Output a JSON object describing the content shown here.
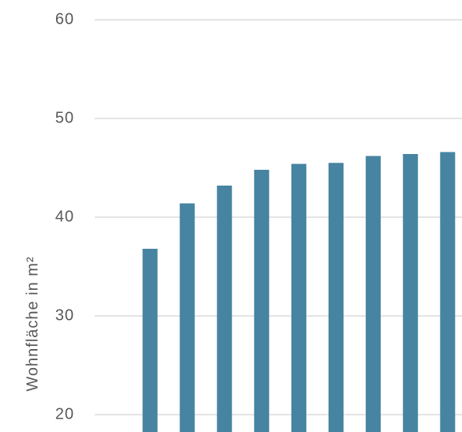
{
  "chart_data": {
    "type": "bar",
    "y_label": "Wohnfläche in m²",
    "categories": [
      null,
      null,
      null,
      null,
      null,
      null,
      null,
      null,
      null
    ],
    "values": [
      36.8,
      41.4,
      43.2,
      44.8,
      45.4,
      45.5,
      46.2,
      46.4,
      46.6
    ],
    "color": "#4784a1",
    "ylim": [
      18.24,
      62
    ],
    "yticks": [
      20,
      30,
      40,
      50,
      60
    ],
    "grid": true
  }
}
